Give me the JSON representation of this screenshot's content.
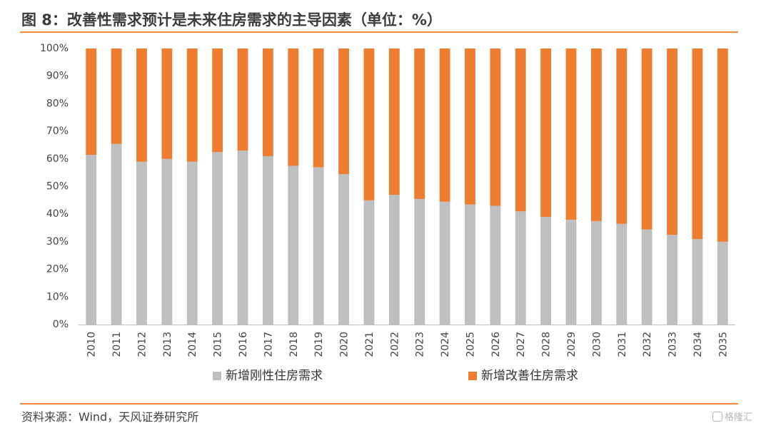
{
  "header": {
    "title": "图 8：改善性需求预计是未来住房需求的主导因素（单位：%）"
  },
  "footer": {
    "source": "资料来源：Wind，天风证券研究所"
  },
  "watermark": {
    "text": "格隆汇"
  },
  "colors": {
    "accent": "#f08a3a",
    "rigid": "#bfbfbf",
    "improve": "#ed7d31"
  },
  "chart_data": {
    "type": "bar",
    "stacked": true,
    "percent": true,
    "categories": [
      "2010",
      "2011",
      "2012",
      "2013",
      "2014",
      "2015",
      "2016",
      "2017",
      "2018",
      "2019",
      "2020",
      "2021",
      "2022",
      "2023",
      "2024",
      "2025",
      "2026",
      "2027",
      "2028",
      "2029",
      "2030",
      "2031",
      "2032",
      "2033",
      "2034",
      "2035"
    ],
    "series": [
      {
        "name": "新增刚性住房需求",
        "color": "#bfbfbf",
        "values": [
          61.5,
          65.5,
          59,
          60,
          59,
          62.5,
          63,
          61,
          57.5,
          57,
          54.5,
          45,
          47,
          45.5,
          44.5,
          43.5,
          43,
          41,
          39,
          38,
          37.5,
          36.5,
          34.5,
          32.5,
          31,
          30
        ]
      },
      {
        "name": "新增改善住房需求",
        "color": "#ed7d31",
        "values": [
          38.5,
          34.5,
          41,
          40,
          41,
          37.5,
          37,
          39,
          42.5,
          43,
          45.5,
          55,
          53,
          54.5,
          55.5,
          56.5,
          57,
          59,
          61,
          62,
          62.5,
          63.5,
          65.5,
          67.5,
          69,
          70
        ]
      }
    ],
    "yticks": [
      "0%",
      "10%",
      "20%",
      "30%",
      "40%",
      "50%",
      "60%",
      "70%",
      "80%",
      "90%",
      "100%"
    ],
    "ylim": [
      0,
      100
    ],
    "grid": false,
    "legend_position": "bottom"
  }
}
